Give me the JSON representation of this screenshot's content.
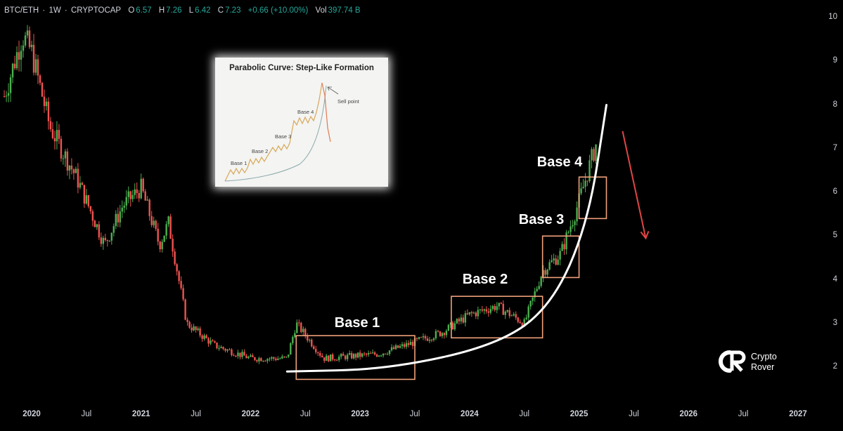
{
  "header": {
    "symbol": "BTC/ETH",
    "interval": "1W",
    "source": "CRYPTOCAP",
    "o_label": "O",
    "o_value": "6.57",
    "h_label": "H",
    "h_value": "7.26",
    "l_label": "L",
    "l_value": "6.42",
    "c_label": "C",
    "c_value": "7.23",
    "change": "+0.66 (+10.00%)",
    "vol_label": "Vol",
    "vol_value": "397.74 B"
  },
  "chart_data": {
    "type": "candlestick",
    "y_axis_ticks": [
      "10",
      "9",
      "8",
      "7",
      "6",
      "5",
      "4",
      "3",
      "2"
    ],
    "ylim": [
      1.5,
      10.2
    ],
    "x_axis_ticks": [
      "2020",
      "Jul",
      "2021",
      "Jul",
      "2022",
      "Jul",
      "2023",
      "Jul",
      "2024",
      "Jul",
      "2025",
      "Jul",
      "2026",
      "Jul",
      "2027"
    ],
    "price_path_approx": [
      {
        "date": "2019-10",
        "close": 8.2
      },
      {
        "date": "2019-12",
        "close": 9.6
      },
      {
        "date": "2020-01",
        "close": 9.2
      },
      {
        "date": "2020-03",
        "close": 7.5
      },
      {
        "date": "2020-06",
        "close": 6.3
      },
      {
        "date": "2020-09",
        "close": 4.8
      },
      {
        "date": "2020-11",
        "close": 5.7
      },
      {
        "date": "2021-01",
        "close": 6.1
      },
      {
        "date": "2021-03",
        "close": 4.8
      },
      {
        "date": "2021-04",
        "close": 5.3
      },
      {
        "date": "2021-06",
        "close": 3.0
      },
      {
        "date": "2021-09",
        "close": 2.5
      },
      {
        "date": "2022-01",
        "close": 2.2
      },
      {
        "date": "2022-05",
        "close": 2.2
      },
      {
        "date": "2022-06",
        "close": 3.0
      },
      {
        "date": "2022-09",
        "close": 2.2
      },
      {
        "date": "2023-03",
        "close": 2.3
      },
      {
        "date": "2023-06",
        "close": 2.5
      },
      {
        "date": "2023-10",
        "close": 2.8
      },
      {
        "date": "2024-01",
        "close": 3.2
      },
      {
        "date": "2024-04",
        "close": 3.4
      },
      {
        "date": "2024-07",
        "close": 3.0
      },
      {
        "date": "2024-09",
        "close": 4.2
      },
      {
        "date": "2024-11",
        "close": 4.6
      },
      {
        "date": "2025-01",
        "close": 5.8
      },
      {
        "date": "2025-03",
        "close": 7.2
      }
    ],
    "annotations": [
      {
        "type": "box",
        "label": "Base 1",
        "x_range": [
          "2022-06",
          "2023-07"
        ],
        "y_range": [
          1.72,
          2.72
        ]
      },
      {
        "type": "box",
        "label": "Base 2",
        "x_range": [
          "2023-11",
          "2024-09"
        ],
        "y_range": [
          2.67,
          3.62
        ]
      },
      {
        "type": "box",
        "label": "Base 3",
        "x_range": [
          "2024-09",
          "2025-01"
        ],
        "y_range": [
          4.05,
          5.0
        ]
      },
      {
        "type": "box",
        "label": "Base 4",
        "x_range": [
          "2025-01",
          "2025-04"
        ],
        "y_range": [
          5.4,
          6.35
        ]
      },
      {
        "type": "curve",
        "label": "parabolic curve",
        "points": [
          [
            "2022-05",
            1.9
          ],
          [
            "2023-04",
            1.95
          ],
          [
            "2024-04",
            2.5
          ],
          [
            "2024-10",
            3.4
          ],
          [
            "2025-02",
            5.3
          ],
          [
            "2025-04",
            8.0
          ]
        ]
      },
      {
        "type": "arrow",
        "color": "#e04545",
        "from": [
          "2025-05",
          7.4
        ],
        "to": [
          "2025-06",
          4.95
        ]
      }
    ]
  },
  "inset": {
    "title": "Parabolic Curve: Step-Like Formation",
    "labels": [
      "Base 1",
      "Base 2",
      "Base 3",
      "Base 4",
      "Sell point"
    ]
  },
  "labels": {
    "base1": "Base 1",
    "base2": "Base 2",
    "base3": "Base 3",
    "base4": "Base 4"
  },
  "logo": {
    "line1": "Crypto",
    "line2": "Rover"
  },
  "colors": {
    "up": "#4caf50",
    "down": "#ef5350",
    "box": "#f0a07a",
    "curve": "#ffffff",
    "arrow": "#e04545"
  }
}
